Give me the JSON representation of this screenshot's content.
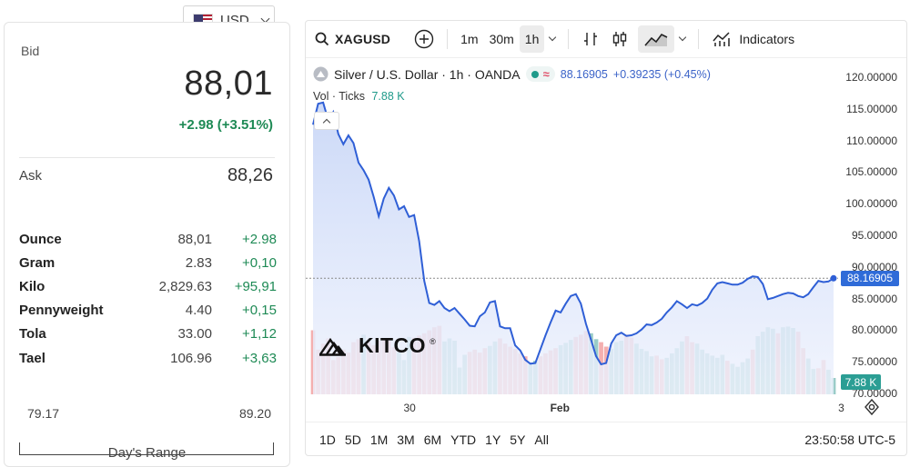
{
  "currency": {
    "code": "USD",
    "flag_icon": "us-flag-icon"
  },
  "quote": {
    "bid_label": "Bid",
    "bid": "88,01",
    "bid_change": "+2.98 (+3.51%)",
    "ask_label": "Ask",
    "ask": "88,26",
    "up_color": "#1e8a55"
  },
  "units": [
    {
      "name": "Ounce",
      "price": "88,01",
      "change": "+2.98"
    },
    {
      "name": "Gram",
      "price": "2.83",
      "change": "+0,10"
    },
    {
      "name": "Kilo",
      "price": "2,829.63",
      "change": "+95,91"
    },
    {
      "name": "Pennyweight",
      "price": "4.40",
      "change": "+0,15"
    },
    {
      "name": "Tola",
      "price": "33.00",
      "change": "+1,12"
    },
    {
      "name": "Tael",
      "price": "106.96",
      "change": "+3,63"
    }
  ],
  "day_range": {
    "low": "79.17",
    "high": "89.20",
    "label": "Day's Range"
  },
  "chart_widget": {
    "toolbar": {
      "symbol": "XAGUSD",
      "intervals": [
        "1m",
        "30m",
        "1h"
      ],
      "active_interval": "1h",
      "indicators_label": "Indicators"
    },
    "legend": {
      "title": "Silver / U.S. Dollar · 1h · OANDA",
      "last": "88.16905",
      "change": "+0.39235 (+0.45%)",
      "vol_label": "Vol · Ticks",
      "vol_value": "7.88 K"
    },
    "last_price_tag": "88.16905",
    "vol_tag": "7.88 K",
    "bottom_ranges": [
      "1D",
      "5D",
      "1M",
      "3M",
      "6M",
      "YTD",
      "1Y",
      "5Y",
      "All"
    ],
    "clock": "23:50:58 UTC-5",
    "watermark": "KITCO",
    "colors": {
      "line": "#2f5fd6",
      "area": "#dbe5fb",
      "vol_up": "#8fc7c2",
      "vol_down": "#f3a6a6",
      "tag": "#2f6bd8",
      "vol_tag": "#2b9e94"
    }
  },
  "chart_data": {
    "type": "line",
    "y_ticks": [
      "120.00000",
      "115.00000",
      "110.00000",
      "105.00000",
      "100.00000",
      "95.00000",
      "90.00000",
      "85.00000",
      "80.00000",
      "75.00000",
      "70.00000"
    ],
    "y_tick_values": [
      120,
      115,
      110,
      105,
      100,
      95,
      90,
      85,
      80,
      75,
      70
    ],
    "ylim": [
      70,
      121.7
    ],
    "x_ticks": [
      "30",
      "Feb",
      "3"
    ],
    "x_tick_index": [
      19,
      48,
      105
    ],
    "price": [
      112.5,
      115.8,
      116.0,
      113.2,
      114.5,
      111.0,
      109.4,
      110.8,
      109.6,
      106.5,
      105.3,
      103.8,
      101.1,
      98.0,
      100.8,
      102.5,
      101.3,
      99.1,
      99.6,
      97.9,
      98.2,
      94.1,
      87.8,
      84.3,
      84.0,
      84.6,
      83.5,
      83.0,
      83.5,
      82.6,
      81.7,
      80.7,
      80.6,
      82.2,
      82.8,
      84.4,
      84.6,
      80.6,
      80.3,
      80.3,
      77.6,
      76.8,
      75.3,
      74.7,
      74.8,
      77.0,
      79.2,
      81.2,
      83.1,
      82.8,
      84.2,
      85.4,
      85.7,
      84.2,
      81.0,
      78.5,
      75.9,
      74.6,
      74.8,
      77.9,
      79.2,
      79.6,
      79.1,
      79.2,
      79.5,
      80.1,
      80.9,
      80.8,
      81.2,
      81.8,
      82.8,
      83.6,
      84.6,
      84.1,
      83.5,
      84.1,
      83.9,
      84.3,
      85.0,
      86.4,
      87.4,
      87.6,
      87.4,
      87.2,
      87.2,
      87.5,
      88.1,
      88.5,
      88.4,
      87.3,
      84.9,
      85.1,
      85.4,
      85.7,
      85.9,
      85.8,
      85.4,
      85.2,
      85.7,
      86.8,
      87.8,
      87.6,
      87.7,
      88.2
    ],
    "volume": [
      0.86,
      0.6,
      0.68,
      0.75,
      0.46,
      0.5,
      0.6,
      0.56,
      0.7,
      0.74,
      0.8,
      0.7,
      0.66,
      0.72,
      0.74,
      0.72,
      0.63,
      0.56,
      0.46,
      0.77,
      0.76,
      0.79,
      0.82,
      0.86,
      0.9,
      0.92,
      0.71,
      0.75,
      0.72,
      0.36,
      0.53,
      0.57,
      0.6,
      0.56,
      0.62,
      0.65,
      0.71,
      0.75,
      0.68,
      0.64,
      0.61,
      0.55,
      0.51,
      0.42,
      0.45,
      0.51,
      0.55,
      0.59,
      0.62,
      0.66,
      0.69,
      0.73,
      0.77,
      0.8,
      0.85,
      0.82,
      0.74,
      0.7,
      0.64,
      0.61,
      0.7,
      0.72,
      0.8,
      0.76,
      0.68,
      0.61,
      0.58,
      0.51,
      0.52,
      0.47,
      0.49,
      0.55,
      0.62,
      0.71,
      0.78,
      0.7,
      0.68,
      0.6,
      0.55,
      0.52,
      0.49,
      0.53,
      0.45,
      0.41,
      0.37,
      0.43,
      0.48,
      0.6,
      0.78,
      0.84,
      0.9,
      0.88,
      0.82,
      0.9,
      0.91,
      0.89,
      0.84,
      0.62,
      0.48,
      0.34,
      0.35,
      0.46,
      0.33,
      0.22
    ],
    "volume_up": [
      0,
      0,
      0,
      0,
      0,
      0,
      0,
      0,
      0,
      0,
      1,
      0,
      0,
      0,
      0,
      0,
      0,
      1,
      1,
      1,
      0,
      0,
      0,
      0,
      0,
      0,
      1,
      1,
      1,
      1,
      1,
      0,
      0,
      0,
      0,
      1,
      1,
      0,
      0,
      0,
      0,
      0,
      0,
      1,
      1,
      0,
      0,
      0,
      0,
      1,
      1,
      1,
      0,
      0,
      0,
      1,
      1,
      0,
      0,
      1,
      1,
      1,
      0,
      0,
      1,
      1,
      1,
      1,
      0,
      0,
      1,
      1,
      1,
      1,
      0,
      0,
      1,
      1,
      1,
      1,
      1,
      1,
      0,
      1,
      1,
      1,
      1,
      0,
      1,
      1,
      1,
      1,
      0,
      1,
      1,
      1,
      0,
      0,
      1,
      1,
      0,
      0,
      1,
      1
    ]
  }
}
